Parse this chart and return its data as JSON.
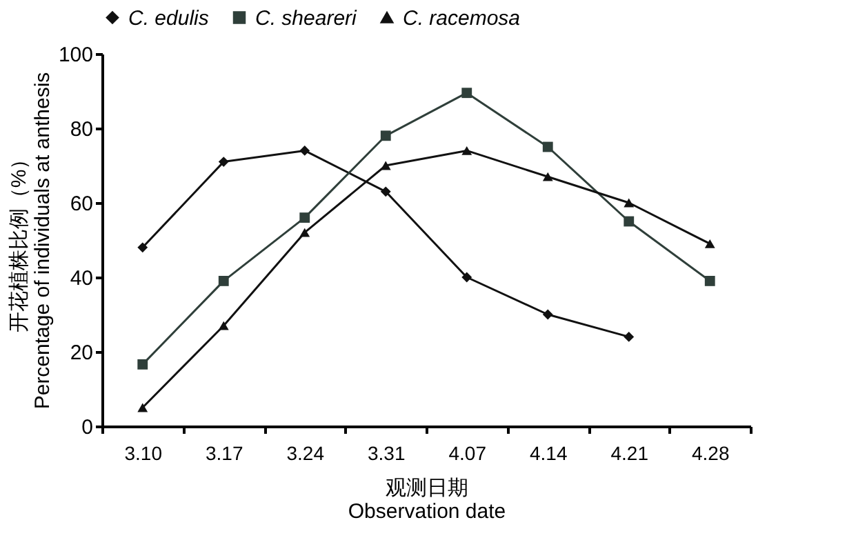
{
  "chart_data": {
    "type": "line",
    "xlabel": "观测日期\nObservation date",
    "ylabel": "开花植株比例（%）\nPercentage of individuals at anthesis",
    "categories": [
      "3.10",
      "3.17",
      "3.24",
      "3.31",
      "4.07",
      "4.14",
      "4.21",
      "4.28"
    ],
    "series": [
      {
        "name": "C. edulis",
        "color": "#111111",
        "marker": "diamond",
        "values": [
          48,
          71,
          74,
          63,
          40,
          30,
          24,
          null
        ]
      },
      {
        "name": "C. sheareri",
        "color": "#2f3f3a",
        "marker": "square",
        "values": [
          16.6,
          39,
          56,
          78,
          89.5,
          75,
          55,
          39
        ]
      },
      {
        "name": "C. racemosa",
        "color": "#111111",
        "marker": "triangle",
        "values": [
          5,
          27,
          52,
          70,
          74,
          67,
          60,
          49
        ]
      }
    ],
    "ylim": [
      0,
      100
    ],
    "yticks": [
      0,
      20,
      40,
      60,
      80,
      100
    ],
    "grid": false,
    "legend": "top",
    "line_style": "solid"
  }
}
